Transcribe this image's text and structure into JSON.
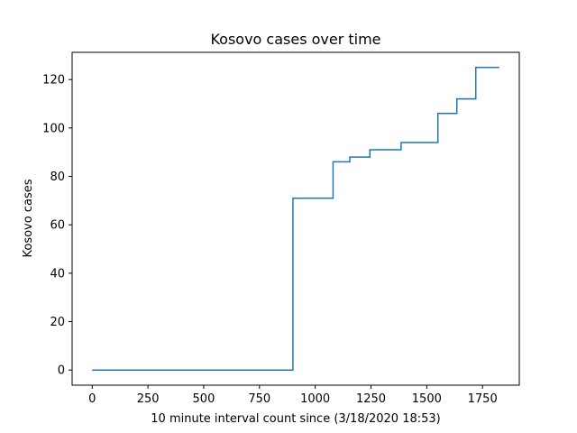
{
  "chart_data": {
    "type": "line",
    "step": true,
    "title": "Kosovo cases over time",
    "xlabel": "10 minute interval count since (3/18/2020 18:53)",
    "ylabel": "Kosovo cases",
    "xlim": [
      -90,
      1915
    ],
    "ylim": [
      -6.25,
      131.25
    ],
    "xticks": [
      0,
      250,
      500,
      750,
      1000,
      1250,
      1500,
      1750
    ],
    "yticks": [
      0,
      20,
      40,
      60,
      80,
      100,
      120
    ],
    "grid": false,
    "line_color": "#1f77b4",
    "series": [
      {
        "x": [
          0,
          900,
          900,
          1080,
          1080,
          1155,
          1155,
          1245,
          1245,
          1385,
          1385,
          1550,
          1550,
          1635,
          1635,
          1720,
          1720,
          1825
        ],
        "y": [
          0,
          0,
          71,
          71,
          86,
          86,
          88,
          88,
          91,
          91,
          94,
          94,
          106,
          106,
          112,
          112,
          125,
          125
        ]
      }
    ]
  }
}
